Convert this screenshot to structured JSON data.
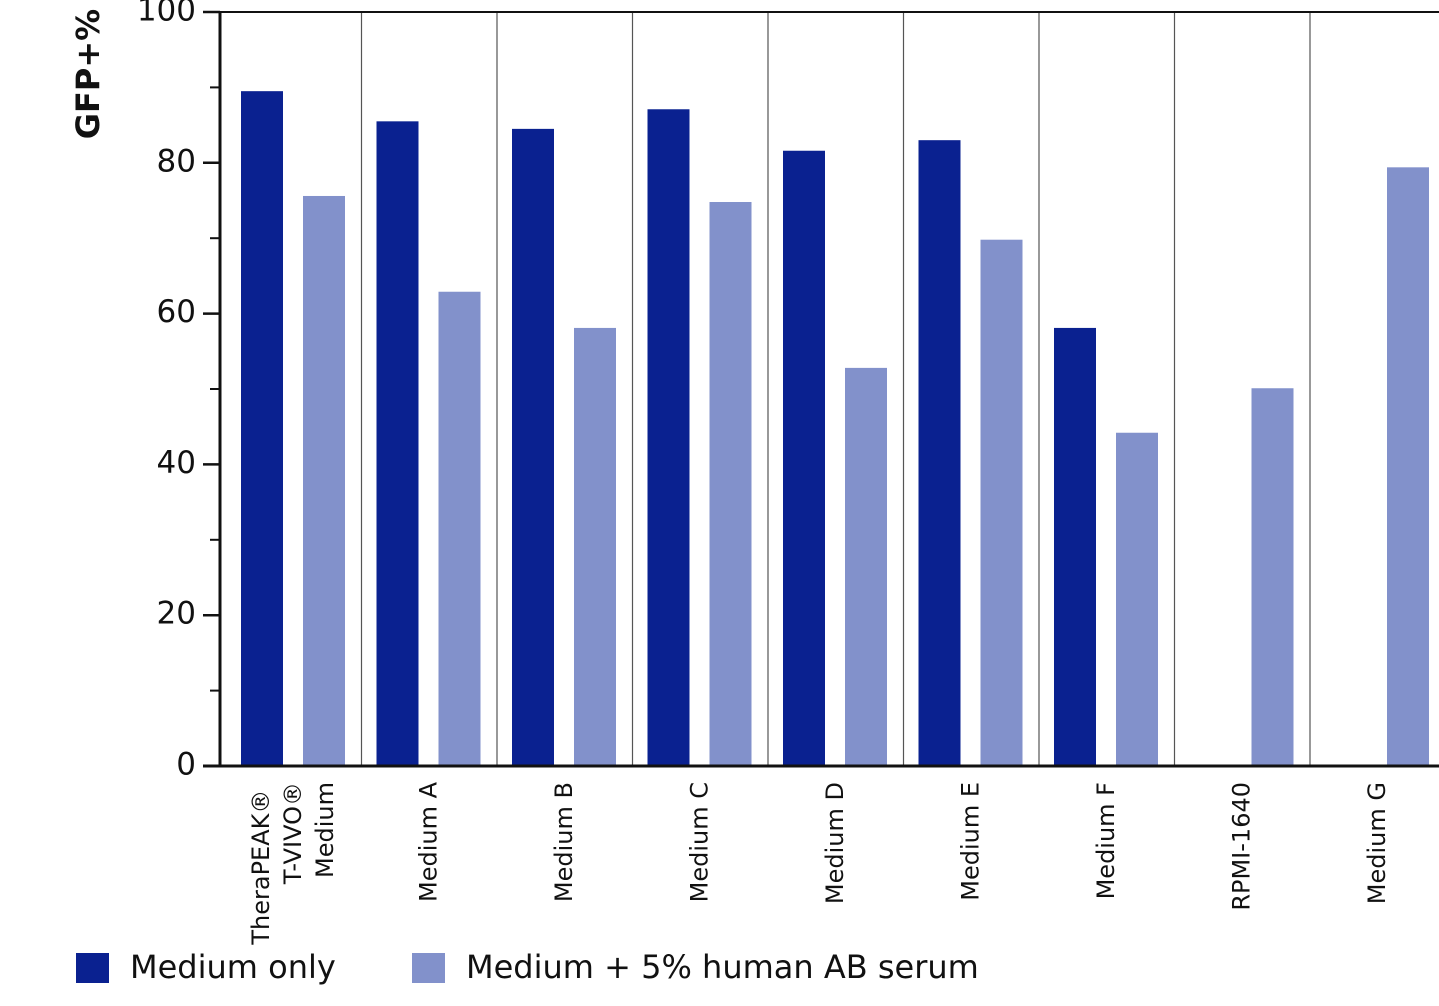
{
  "chart_data": {
    "type": "bar",
    "ylabel": "GFP+%",
    "categories": [
      "TheraPEAK® \nT-VIVO®\nMedium",
      "Medium  A",
      "Medium B",
      "Medium C",
      "Medium D",
      "Medium E",
      "Medium F",
      "RPMI-1640",
      "Medium G"
    ],
    "series": [
      {
        "name": "Medium only",
        "color": "#0a2190",
        "values": [
          89.5,
          85.5,
          84.5,
          87.1,
          81.6,
          83.0,
          58.1,
          null,
          null
        ]
      },
      {
        "name": "Medium + 5% human AB serum",
        "color": "#8291cb",
        "values": [
          75.6,
          62.9,
          58.1,
          74.8,
          52.8,
          69.8,
          44.2,
          50.1,
          79.4
        ]
      }
    ],
    "ylim": [
      0,
      100
    ],
    "yticks": [
      0,
      20,
      40,
      60,
      80,
      100
    ]
  }
}
